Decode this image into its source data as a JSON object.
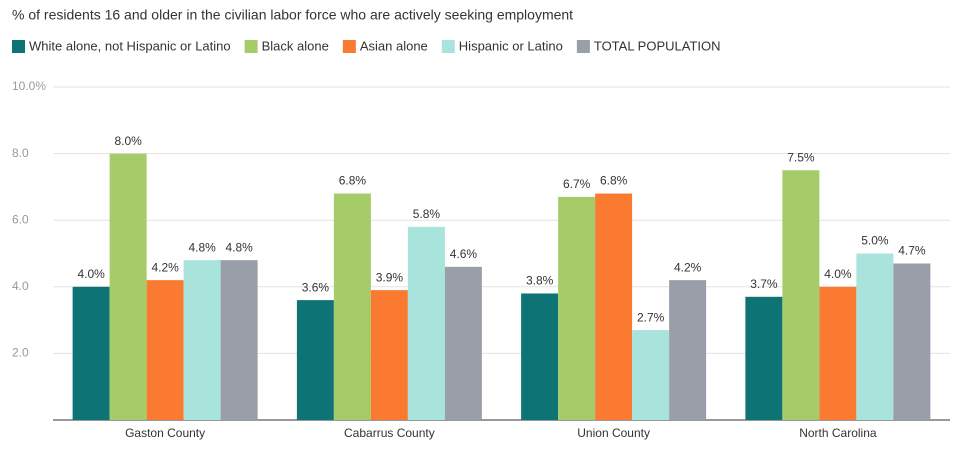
{
  "chart_data": {
    "type": "bar",
    "title": "% of residents 16 and older in the civilian labor force who are actively seeking employment",
    "categories": [
      "Gaston County",
      "Cabarrus County",
      "Union County",
      "North Carolina"
    ],
    "series": [
      {
        "name": "White alone, not Hispanic or Latino",
        "color": "#0e7374",
        "values": [
          4.0,
          3.6,
          3.8,
          3.7
        ],
        "value_labels": [
          "4.0%",
          "3.6%",
          "3.8%",
          "3.7%"
        ]
      },
      {
        "name": "Black alone",
        "color": "#a6cc6a",
        "values": [
          8.0,
          6.8,
          6.7,
          7.5
        ],
        "value_labels": [
          "8.0%",
          "6.8%",
          "6.7%",
          "7.5%"
        ]
      },
      {
        "name": "Asian alone",
        "color": "#f97a30",
        "values": [
          4.2,
          3.9,
          6.8,
          4.0
        ],
        "value_labels": [
          "4.2%",
          "3.9%",
          "6.8%",
          "4.0%"
        ]
      },
      {
        "name": "Hispanic or Latino",
        "color": "#a8e4dc",
        "values": [
          4.8,
          5.8,
          2.7,
          5.0
        ],
        "value_labels": [
          "4.8%",
          "5.8%",
          "2.7%",
          "5.0%"
        ]
      },
      {
        "name": "TOTAL POPULATION",
        "color": "#9a9ea8",
        "values": [
          4.8,
          4.6,
          4.2,
          4.7
        ],
        "value_labels": [
          "4.8%",
          "4.6%",
          "4.2%",
          "4.7%"
        ]
      }
    ],
    "ylim": [
      0,
      10
    ],
    "yticks": [
      {
        "value": 2,
        "label": "2.0"
      },
      {
        "value": 4,
        "label": "4.0"
      },
      {
        "value": 6,
        "label": "6.0"
      },
      {
        "value": 8,
        "label": "8.0"
      },
      {
        "value": 10,
        "label": "10.0%"
      }
    ],
    "grid": true,
    "legend": "top"
  }
}
